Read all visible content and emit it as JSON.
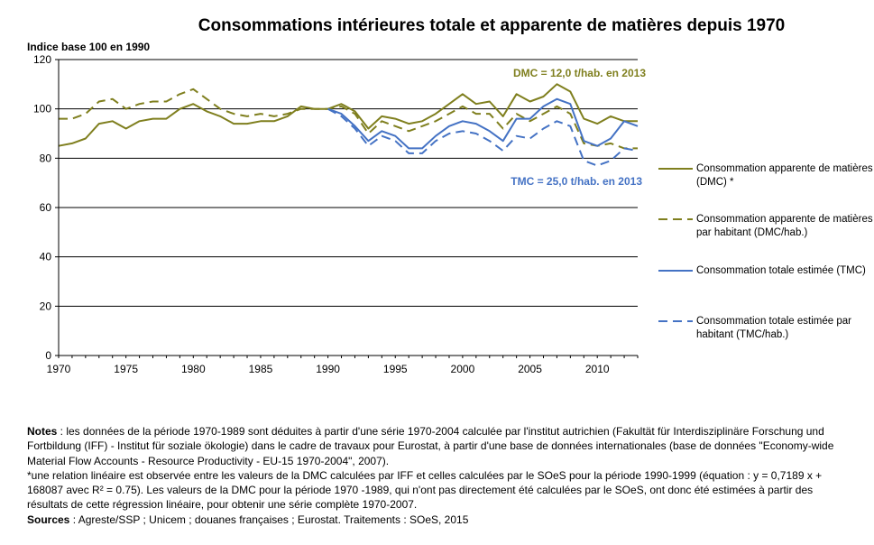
{
  "chart_data": {
    "type": "line",
    "title": "Consommations intérieures totale et apparente de matières depuis 1970",
    "ylabel": "Indice base 100 en 1990",
    "xlim": [
      1970,
      2013
    ],
    "ylim": [
      0,
      120
    ],
    "yticks": [
      0,
      20,
      40,
      60,
      80,
      100,
      120
    ],
    "xticks": [
      1970,
      1975,
      1980,
      1985,
      1990,
      1995,
      2000,
      2005,
      2010
    ],
    "grid": "horizontal",
    "legend_position": "right",
    "series": [
      {
        "name": "Consommation apparente de matières (DMC) *",
        "color": "#7f7f1e",
        "style": "solid",
        "x": [
          1970,
          1971,
          1972,
          1973,
          1974,
          1975,
          1976,
          1977,
          1978,
          1979,
          1980,
          1981,
          1982,
          1983,
          1984,
          1985,
          1986,
          1987,
          1988,
          1989,
          1990,
          1991,
          1992,
          1993,
          1994,
          1995,
          1996,
          1997,
          1998,
          1999,
          2000,
          2001,
          2002,
          2003,
          2004,
          2005,
          2006,
          2007,
          2008,
          2009,
          2010,
          2011,
          2012,
          2013
        ],
        "values": [
          85,
          86,
          88,
          94,
          95,
          92,
          95,
          96,
          96,
          100,
          102,
          99,
          97,
          94,
          94,
          95,
          95,
          97,
          101,
          100,
          100,
          102,
          99,
          92,
          97,
          96,
          94,
          95,
          98,
          102,
          106,
          102,
          103,
          97,
          106,
          103,
          105,
          110,
          107,
          96,
          94,
          97,
          95,
          95
        ]
      },
      {
        "name": "Consommation apparente de matières par habitant (DMC/hab.)",
        "color": "#7f7f1e",
        "style": "dashed",
        "x": [
          1970,
          1971,
          1972,
          1973,
          1974,
          1975,
          1976,
          1977,
          1978,
          1979,
          1980,
          1981,
          1982,
          1983,
          1984,
          1985,
          1986,
          1987,
          1988,
          1989,
          1990,
          1991,
          1992,
          1993,
          1994,
          1995,
          1996,
          1997,
          1998,
          1999,
          2000,
          2001,
          2002,
          2003,
          2004,
          2005,
          2006,
          2007,
          2008,
          2009,
          2010,
          2011,
          2012,
          2013
        ],
        "values": [
          96,
          96,
          98,
          103,
          104,
          100,
          102,
          103,
          103,
          106,
          108,
          104,
          100,
          98,
          97,
          98,
          97,
          98,
          100,
          100,
          100,
          101,
          98,
          90,
          95,
          93,
          91,
          93,
          95,
          98,
          101,
          98,
          98,
          92,
          98,
          95,
          98,
          101,
          98,
          86,
          85,
          86,
          84,
          84
        ]
      },
      {
        "name": "Consommation totale estimée (TMC)",
        "color": "#4472c4",
        "style": "solid",
        "x": [
          1990,
          1991,
          1992,
          1993,
          1994,
          1995,
          1996,
          1997,
          1998,
          1999,
          2000,
          2001,
          2002,
          2003,
          2004,
          2005,
          2006,
          2007,
          2008,
          2009,
          2010,
          2011,
          2012,
          2013
        ],
        "values": [
          100,
          98,
          93,
          87,
          91,
          89,
          84,
          84,
          89,
          93,
          95,
          94,
          91,
          87,
          96,
          96,
          101,
          104,
          102,
          87,
          85,
          88,
          95,
          93
        ]
      },
      {
        "name": "Consommation totale estimée par habitant (TMC/hab.)",
        "color": "#4472c4",
        "style": "dashed",
        "x": [
          1990,
          1991,
          1992,
          1993,
          1994,
          1995,
          1996,
          1997,
          1998,
          1999,
          2000,
          2001,
          2002,
          2003,
          2004,
          2005,
          2006,
          2007,
          2008,
          2009,
          2010,
          2011,
          2012,
          2013
        ],
        "values": [
          100,
          97,
          92,
          85,
          89,
          87,
          82,
          82,
          87,
          90,
          91,
          90,
          87,
          83,
          89,
          88,
          92,
          95,
          93,
          79,
          77,
          79,
          84,
          83
        ]
      }
    ],
    "annotations": [
      {
        "text": "DMC = 12,0 t/hab. en 2013",
        "color": "#7f7f1e"
      },
      {
        "text": "TMC = 25,0 t/hab. en 2013",
        "color": "#4472c4"
      }
    ]
  },
  "notes": {
    "notes_label": "Notes",
    "notes_text": " : les données de la période 1970-1989 sont déduites à partir d'une série 1970-2004 calculée par l'institut autrichien (Fakultät für Interdisziplinäre Forschung und Fortbildung (IFF) - Institut für soziale ökologie) dans le cadre de travaux pour Eurostat, à partir d'une base de données internationales (base de données \"Economy-wide Material Flow Accounts - Resource Productivity - EU-15 1970-2004\", 2007).",
    "footnote": "*une relation linéaire est observée entre les valeurs de la DMC calculées par IFF et celles calculées par le SOeS pour la période 1990-1999 (équation : y = 0,7189 x + 168087 avec R² = 0.75). Les valeurs de la DMC pour la période 1970 -1989, qui n'ont pas directement été calculées par le SOeS, ont donc été estimées à partir des résultats de cette régression linéaire, pour obtenir une série complète 1970-2007.",
    "sources_label": "Sources",
    "sources_text": " : Agreste/SSP ; Unicem ; douanes françaises ; Eurostat. Traitements : SOeS, 2015"
  }
}
